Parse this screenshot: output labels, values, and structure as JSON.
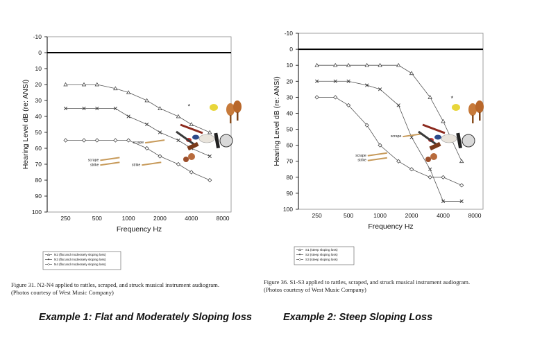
{
  "chart_data": [
    {
      "type": "line",
      "xlabel": "Frequency Hz",
      "ylabel": "Hearing Level dB (re: ANSI)",
      "x_ticks": [
        "250",
        "500",
        "1000",
        "2000",
        "4000",
        "8000"
      ],
      "y_ticks": [
        "-10",
        "0",
        "10",
        "20",
        "30",
        "40",
        "50",
        "60",
        "70",
        "80",
        "90",
        "100"
      ],
      "ylim": [
        -10,
        100
      ],
      "y_inverted": true,
      "x_scale": "log",
      "series": [
        {
          "name": "N2 (flat and moderately sloping loss)",
          "marker": "triangle",
          "x": [
            250,
            375,
            500,
            750,
            1000,
            1500,
            2000,
            3000,
            4000,
            6000
          ],
          "y": [
            20,
            20,
            20,
            22.5,
            25,
            30,
            35,
            40,
            45,
            50
          ]
        },
        {
          "name": "N3 (flat and moderately sloping loss)",
          "marker": "x",
          "x": [
            250,
            375,
            500,
            750,
            1000,
            1500,
            2000,
            3000,
            4000,
            6000
          ],
          "y": [
            35,
            35,
            35,
            35,
            40,
            45,
            50,
            55,
            60,
            65
          ]
        },
        {
          "name": "N4 (flat and moderately sloping loss)",
          "marker": "diamond",
          "x": [
            250,
            375,
            500,
            750,
            1000,
            1500,
            2000,
            3000,
            4000,
            6000
          ],
          "y": [
            55,
            55,
            55,
            55,
            55,
            60,
            65,
            70,
            75,
            80
          ]
        }
      ],
      "annotations": [
        {
          "text": "scrape",
          "x": 1400,
          "y": 57
        },
        {
          "text": "scrape",
          "x": 520,
          "y": 68
        },
        {
          "text": "strike",
          "x": 520,
          "y": 71
        },
        {
          "text": "strike",
          "x": 1300,
          "y": 71
        },
        {
          "text": "*",
          "x": 3900,
          "y": 35
        }
      ]
    },
    {
      "type": "line",
      "xlabel": "Frequency Hz",
      "ylabel": "Hearing Level dB (re: ANSI)",
      "x_ticks": [
        "250",
        "500",
        "1000",
        "2000",
        "4000",
        "8000"
      ],
      "y_ticks": [
        "-10",
        "0",
        "10",
        "20",
        "30",
        "40",
        "50",
        "60",
        "70",
        "80",
        "90",
        "100"
      ],
      "ylim": [
        -10,
        100
      ],
      "y_inverted": true,
      "x_scale": "log",
      "series": [
        {
          "name": "S1 (steep sloping loss)",
          "marker": "triangle",
          "x": [
            250,
            375,
            500,
            750,
            1000,
            1500,
            2000,
            3000,
            4000,
            6000
          ],
          "y": [
            10,
            10,
            10,
            10,
            10,
            10,
            15,
            30,
            45,
            70
          ]
        },
        {
          "name": "S2 (steep sloping loss)",
          "marker": "x",
          "x": [
            250,
            375,
            500,
            750,
            1000,
            1500,
            2000,
            3000,
            4000,
            6000
          ],
          "y": [
            20,
            20,
            20,
            22.5,
            25,
            35,
            55,
            75,
            95,
            95
          ]
        },
        {
          "name": "S3 (steep sloping loss)",
          "marker": "diamond",
          "x": [
            250,
            375,
            500,
            750,
            1000,
            1500,
            2000,
            3000,
            4000,
            6000
          ],
          "y": [
            30,
            30,
            35,
            47.5,
            60,
            70,
            75,
            80,
            80,
            85
          ]
        }
      ],
      "annotations": [
        {
          "text": "scrape",
          "x": 1600,
          "y": 55
        },
        {
          "text": "scrape",
          "x": 740,
          "y": 67
        },
        {
          "text": "strike",
          "x": 740,
          "y": 70
        },
        {
          "text": "*",
          "x": 5000,
          "y": 32
        }
      ]
    }
  ],
  "captions": {
    "left": "Figure 31. N2-N4 applied to rattles, scraped, and struck musical instrument audiogram.\n(Photos courtesy of West Music Company)",
    "right": "Figure 36. S1-S3 applied to rattles, scraped, and struck musical instrument audiogram.\n(Photos courtesy of West Music Company)"
  },
  "examples": {
    "left": "Example 1: Flat and Moderately Sloping loss",
    "right": "Example 2: Steep Sloping Loss"
  },
  "colors": {
    "line": "#555555",
    "axis": "#000000",
    "zero_line": "#000000",
    "plot_border": "#888888"
  }
}
